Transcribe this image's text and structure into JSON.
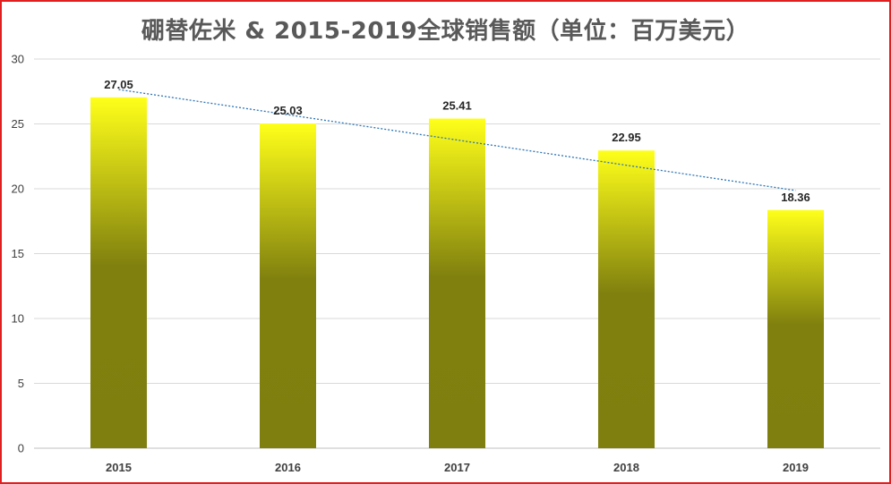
{
  "chart_data": {
    "type": "bar",
    "title": "硼替佐米 & 2015-2019全球销售额（单位：百万美元）",
    "categories": [
      "2015",
      "2016",
      "2017",
      "2018",
      "2019"
    ],
    "values": [
      27.05,
      25.03,
      25.41,
      22.95,
      18.36
    ],
    "data_labels": [
      "27.05",
      "25.03",
      "25.41",
      "22.95",
      "18.36"
    ],
    "y_ticks": [
      "0",
      "5",
      "10",
      "15",
      "20",
      "25",
      "30"
    ],
    "ylim": [
      0,
      30
    ],
    "grid": true,
    "trendline": "linear",
    "colors": {
      "bar_top": "#ffff1a",
      "bar_bottom": "#7f7f0f",
      "trendline": "#2e75b6",
      "grid": "#d9d9d9",
      "frame_border": "#e02020"
    }
  }
}
